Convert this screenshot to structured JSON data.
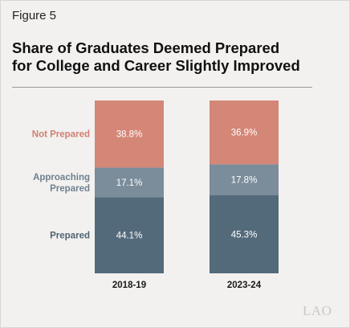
{
  "figure_label": "Figure 5",
  "title_line1": "Share of Graduates Deemed Prepared",
  "title_line2": "for College and Career Slightly Improved",
  "logo": "LAO",
  "chart_data": {
    "type": "bar",
    "stacked": true,
    "categories": [
      "2018-19",
      "2023-24"
    ],
    "series": [
      {
        "name": "Prepared",
        "label_lines": [
          "Prepared"
        ],
        "values": [
          44.1,
          45.3
        ],
        "labels": [
          "44.1%",
          "45.3%"
        ],
        "color": "#536a7a",
        "label_color": "#4e6373"
      },
      {
        "name": "Approaching Prepared",
        "label_lines": [
          "Approaching",
          "Prepared"
        ],
        "values": [
          17.1,
          17.8
        ],
        "labels": [
          "17.1%",
          "17.8%"
        ],
        "color": "#7b8c9b",
        "label_color": "#6f8191"
      },
      {
        "name": "Not Prepared",
        "label_lines": [
          "Not Prepared"
        ],
        "values": [
          38.8,
          36.9
        ],
        "labels": [
          "38.8%",
          "36.9%"
        ],
        "color": "#d48677",
        "label_color": "#d17f71"
      }
    ],
    "ylim": [
      0,
      100
    ],
    "grid": false,
    "legend": "left"
  }
}
